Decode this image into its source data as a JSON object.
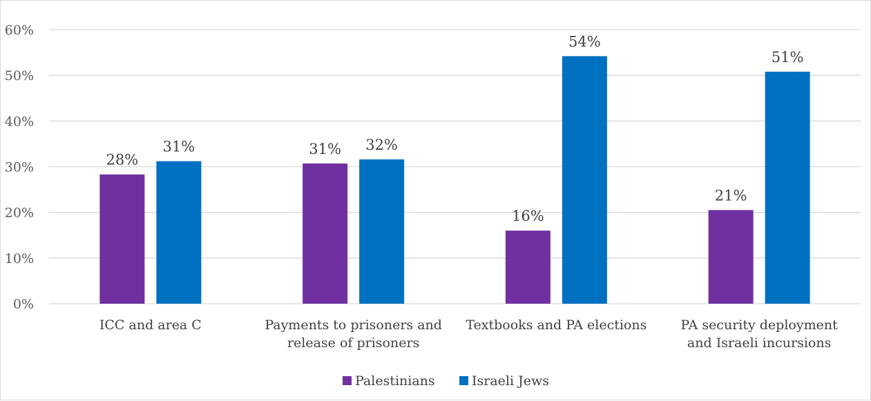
{
  "chart_data": {
    "type": "bar",
    "title": "",
    "xlabel": "",
    "ylabel": "",
    "ylim": [
      0,
      60
    ],
    "y_ticks": [
      0,
      10,
      20,
      30,
      40,
      50,
      60
    ],
    "y_tick_suffix": "%",
    "grid": true,
    "legend_position": "bottom",
    "categories": [
      [
        "ICC and area C"
      ],
      [
        "Payments to prisoners and",
        "release of prisoners"
      ],
      [
        "Textbooks and PA elections"
      ],
      [
        "PA security deployment",
        "and Israeli incursions"
      ]
    ],
    "series": [
      {
        "name": "Palestinians",
        "color": "#7030a0",
        "values": [
          28.3,
          30.7,
          16.0,
          20.5
        ],
        "labels": [
          "28%",
          "31%",
          "16%",
          "21%"
        ]
      },
      {
        "name": "Israeli Jews",
        "color": "#0070c0",
        "values": [
          31.2,
          31.6,
          54.2,
          50.8
        ],
        "labels": [
          "31%",
          "32%",
          "54%",
          "51%"
        ]
      }
    ]
  }
}
